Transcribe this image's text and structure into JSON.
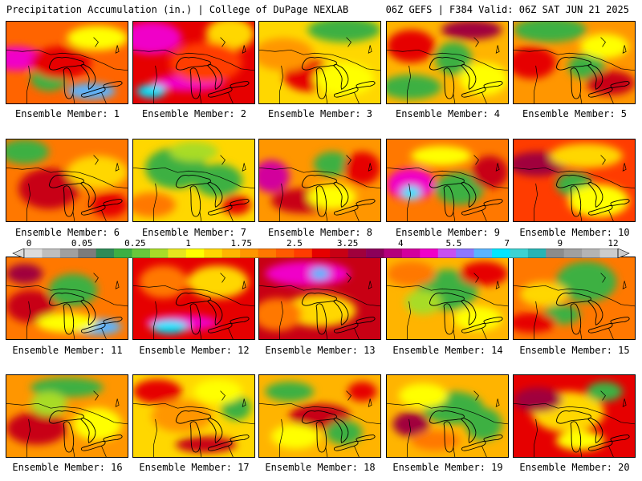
{
  "header": {
    "left_title": "Precipitation Accumulation (in.) | College of DuPage NEXLAB",
    "right_title": "06Z GEFS | F384 Valid: 06Z SAT JUN 21 2025"
  },
  "colorbar": {
    "labels": [
      "0",
      "0.05",
      "0.25",
      "1",
      "1.75",
      "2.5",
      "3.25",
      "4",
      "5.5",
      "7",
      "9",
      "12"
    ],
    "colors": [
      "#dcdcdc",
      "#bebebe",
      "#a0a0a0",
      "#7c7c7c",
      "#2e8b57",
      "#3cb043",
      "#68c83c",
      "#a8dc28",
      "#e6e61e",
      "#ffff00",
      "#ffd700",
      "#ffb400",
      "#ff9600",
      "#ff7800",
      "#ff5a00",
      "#ff3c00",
      "#e60000",
      "#c80014",
      "#a0003c",
      "#8c005a",
      "#b4007c",
      "#d2009c",
      "#f000c8",
      "#c850f0",
      "#8c78ff",
      "#5ab4ff",
      "#00e6ff",
      "#3cd2d2",
      "#28b4b4",
      "#8c8c8c",
      "#a0a0a0",
      "#b4b4b4",
      "#cccccc"
    ]
  },
  "members": [
    {
      "label": "Ensemble Member: 1",
      "base": "#ff6400",
      "blobs": [
        [
          "#f000c8",
          0.08,
          0.45,
          0.22,
          0.15
        ],
        [
          "#5ab4ff",
          0.7,
          0.85,
          0.2,
          0.1
        ],
        [
          "#3cb043",
          0.35,
          0.7,
          0.15,
          0.15
        ],
        [
          "#ffff00",
          0.75,
          0.2,
          0.25,
          0.15
        ],
        [
          "#e60000",
          0.45,
          0.5,
          0.25,
          0.2
        ]
      ]
    },
    {
      "label": "Ensemble Member: 2",
      "base": "#e60000",
      "blobs": [
        [
          "#f000c8",
          0.15,
          0.2,
          0.25,
          0.2
        ],
        [
          "#f000c8",
          0.45,
          0.75,
          0.3,
          0.1
        ],
        [
          "#00e6ff",
          0.15,
          0.85,
          0.12,
          0.08
        ],
        [
          "#ffd700",
          0.8,
          0.15,
          0.2,
          0.2
        ],
        [
          "#ff3c00",
          0.6,
          0.5,
          0.3,
          0.25
        ]
      ]
    },
    {
      "label": "Ensemble Member: 3",
      "base": "#ffd700",
      "blobs": [
        [
          "#3cb043",
          0.7,
          0.1,
          0.3,
          0.15
        ],
        [
          "#e60000",
          0.4,
          0.65,
          0.2,
          0.2
        ],
        [
          "#ff9600",
          0.2,
          0.4,
          0.25,
          0.2
        ],
        [
          "#ffff00",
          0.7,
          0.7,
          0.25,
          0.2
        ]
      ]
    },
    {
      "label": "Ensemble Member: 4",
      "base": "#ffb400",
      "blobs": [
        [
          "#a0003c",
          0.7,
          0.1,
          0.25,
          0.12
        ],
        [
          "#3cb043",
          0.2,
          0.8,
          0.25,
          0.15
        ],
        [
          "#3cb043",
          0.55,
          0.45,
          0.15,
          0.2
        ],
        [
          "#e60000",
          0.2,
          0.3,
          0.2,
          0.2
        ],
        [
          "#ffff00",
          0.8,
          0.7,
          0.2,
          0.2
        ]
      ]
    },
    {
      "label": "Ensemble Member: 5",
      "base": "#ff9600",
      "blobs": [
        [
          "#3cb043",
          0.3,
          0.1,
          0.3,
          0.15
        ],
        [
          "#3cb043",
          0.6,
          0.55,
          0.15,
          0.15
        ],
        [
          "#e60000",
          0.15,
          0.5,
          0.2,
          0.2
        ],
        [
          "#ffff00",
          0.75,
          0.3,
          0.2,
          0.15
        ],
        [
          "#c80014",
          0.8,
          0.75,
          0.2,
          0.15
        ]
      ]
    },
    {
      "label": "Ensemble Member: 6",
      "base": "#ff7800",
      "blobs": [
        [
          "#3cb043",
          0.15,
          0.15,
          0.2,
          0.15
        ],
        [
          "#c80014",
          0.35,
          0.6,
          0.25,
          0.25
        ],
        [
          "#ffd700",
          0.75,
          0.4,
          0.25,
          0.2
        ],
        [
          "#e60000",
          0.85,
          0.8,
          0.15,
          0.15
        ]
      ]
    },
    {
      "label": "Ensemble Member: 7",
      "base": "#ffd700",
      "blobs": [
        [
          "#3cb043",
          0.35,
          0.35,
          0.25,
          0.25
        ],
        [
          "#3cb043",
          0.7,
          0.5,
          0.2,
          0.2
        ],
        [
          "#a8dc28",
          0.5,
          0.15,
          0.2,
          0.12
        ],
        [
          "#ff7800",
          0.15,
          0.8,
          0.2,
          0.15
        ],
        [
          "#e60000",
          0.85,
          0.8,
          0.12,
          0.12
        ]
      ]
    },
    {
      "label": "Ensemble Member: 8",
      "base": "#ff9600",
      "blobs": [
        [
          "#d2009c",
          0.1,
          0.45,
          0.15,
          0.2
        ],
        [
          "#c80014",
          0.35,
          0.75,
          0.25,
          0.15
        ],
        [
          "#3cb043",
          0.6,
          0.3,
          0.15,
          0.15
        ],
        [
          "#ffff00",
          0.6,
          0.7,
          0.2,
          0.15
        ],
        [
          "#e60000",
          0.85,
          0.35,
          0.15,
          0.2
        ]
      ]
    },
    {
      "label": "Ensemble Member: 9",
      "base": "#ff7800",
      "blobs": [
        [
          "#f000c8",
          0.2,
          0.55,
          0.2,
          0.2
        ],
        [
          "#00e6ff",
          0.2,
          0.65,
          0.08,
          0.08
        ],
        [
          "#3cb043",
          0.6,
          0.6,
          0.2,
          0.2
        ],
        [
          "#ffff00",
          0.45,
          0.2,
          0.25,
          0.12
        ],
        [
          "#c80014",
          0.85,
          0.4,
          0.15,
          0.2
        ]
      ]
    },
    {
      "label": "Ensemble Member: 10",
      "base": "#ff3c00",
      "blobs": [
        [
          "#a0003c",
          0.2,
          0.3,
          0.25,
          0.15
        ],
        [
          "#ffd700",
          0.6,
          0.2,
          0.3,
          0.15
        ],
        [
          "#3cb043",
          0.5,
          0.55,
          0.15,
          0.15
        ],
        [
          "#ffff00",
          0.7,
          0.75,
          0.25,
          0.2
        ]
      ]
    },
    {
      "label": "Ensemble Member: 11",
      "base": "#ff7800",
      "blobs": [
        [
          "#3cb043",
          0.55,
          0.4,
          0.2,
          0.2
        ],
        [
          "#5ab4ff",
          0.75,
          0.85,
          0.2,
          0.1
        ],
        [
          "#c80014",
          0.2,
          0.6,
          0.2,
          0.2
        ],
        [
          "#ffff00",
          0.5,
          0.8,
          0.25,
          0.12
        ],
        [
          "#a0003c",
          0.15,
          0.2,
          0.15,
          0.12
        ]
      ]
    },
    {
      "label": "Ensemble Member: 12",
      "base": "#e60000",
      "blobs": [
        [
          "#f000c8",
          0.4,
          0.8,
          0.3,
          0.1
        ],
        [
          "#00e6ff",
          0.3,
          0.85,
          0.15,
          0.08
        ],
        [
          "#ffd700",
          0.7,
          0.3,
          0.25,
          0.2
        ],
        [
          "#ff7800",
          0.25,
          0.3,
          0.2,
          0.2
        ]
      ]
    },
    {
      "label": "Ensemble Member: 13",
      "base": "#c80014",
      "blobs": [
        [
          "#f000c8",
          0.4,
          0.2,
          0.35,
          0.15
        ],
        [
          "#5ab4ff",
          0.5,
          0.2,
          0.08,
          0.08
        ],
        [
          "#ffd700",
          0.5,
          0.65,
          0.3,
          0.2
        ],
        [
          "#ff7800",
          0.15,
          0.7,
          0.2,
          0.2
        ]
      ]
    },
    {
      "label": "Ensemble Member: 14",
      "base": "#ffb400",
      "blobs": [
        [
          "#3cb043",
          0.5,
          0.4,
          0.25,
          0.25
        ],
        [
          "#a8dc28",
          0.3,
          0.55,
          0.15,
          0.15
        ],
        [
          "#e60000",
          0.8,
          0.2,
          0.2,
          0.15
        ],
        [
          "#ff7800",
          0.2,
          0.2,
          0.2,
          0.15
        ],
        [
          "#ffff00",
          0.75,
          0.75,
          0.2,
          0.15
        ]
      ]
    },
    {
      "label": "Ensemble Member: 15",
      "base": "#ff7800",
      "blobs": [
        [
          "#3cb043",
          0.6,
          0.3,
          0.25,
          0.25
        ],
        [
          "#3cb043",
          0.4,
          0.7,
          0.15,
          0.12
        ],
        [
          "#ffd700",
          0.25,
          0.45,
          0.2,
          0.15
        ],
        [
          "#e60000",
          0.15,
          0.8,
          0.2,
          0.12
        ]
      ]
    },
    {
      "label": "Ensemble Member: 16",
      "base": "#ff9600",
      "blobs": [
        [
          "#3cb043",
          0.5,
          0.15,
          0.3,
          0.12
        ],
        [
          "#c80014",
          0.25,
          0.65,
          0.25,
          0.2
        ],
        [
          "#a8dc28",
          0.35,
          0.35,
          0.15,
          0.15
        ],
        [
          "#ffff00",
          0.75,
          0.6,
          0.2,
          0.2
        ]
      ]
    },
    {
      "label": "Ensemble Member: 17",
      "base": "#ffd700",
      "blobs": [
        [
          "#e60000",
          0.2,
          0.2,
          0.2,
          0.15
        ],
        [
          "#c80014",
          0.6,
          0.85,
          0.25,
          0.1
        ],
        [
          "#3cb043",
          0.85,
          0.4,
          0.12,
          0.15
        ],
        [
          "#ff9600",
          0.4,
          0.5,
          0.25,
          0.2
        ],
        [
          "#ffff00",
          0.7,
          0.2,
          0.2,
          0.15
        ]
      ]
    },
    {
      "label": "Ensemble Member: 18",
      "base": "#ffb400",
      "blobs": [
        [
          "#3cb043",
          0.25,
          0.2,
          0.2,
          0.12
        ],
        [
          "#c80014",
          0.5,
          0.5,
          0.25,
          0.15
        ],
        [
          "#3cb043",
          0.7,
          0.7,
          0.15,
          0.15
        ],
        [
          "#ffff00",
          0.3,
          0.75,
          0.2,
          0.15
        ],
        [
          "#e60000",
          0.85,
          0.2,
          0.12,
          0.12
        ]
      ]
    },
    {
      "label": "Ensemble Member: 19",
      "base": "#ffb400",
      "blobs": [
        [
          "#3cb043",
          0.55,
          0.4,
          0.25,
          0.2
        ],
        [
          "#a0003c",
          0.2,
          0.6,
          0.15,
          0.15
        ],
        [
          "#ffff00",
          0.3,
          0.25,
          0.2,
          0.15
        ],
        [
          "#3cb043",
          0.8,
          0.6,
          0.15,
          0.2
        ],
        [
          "#ff7800",
          0.4,
          0.8,
          0.2,
          0.12
        ]
      ]
    },
    {
      "label": "Ensemble Member: 20",
      "base": "#e60000",
      "blobs": [
        [
          "#ffd700",
          0.45,
          0.45,
          0.3,
          0.25
        ],
        [
          "#3cb043",
          0.75,
          0.2,
          0.15,
          0.12
        ],
        [
          "#a0003c",
          0.2,
          0.3,
          0.2,
          0.15
        ],
        [
          "#ffff00",
          0.55,
          0.8,
          0.2,
          0.12
        ]
      ]
    }
  ]
}
